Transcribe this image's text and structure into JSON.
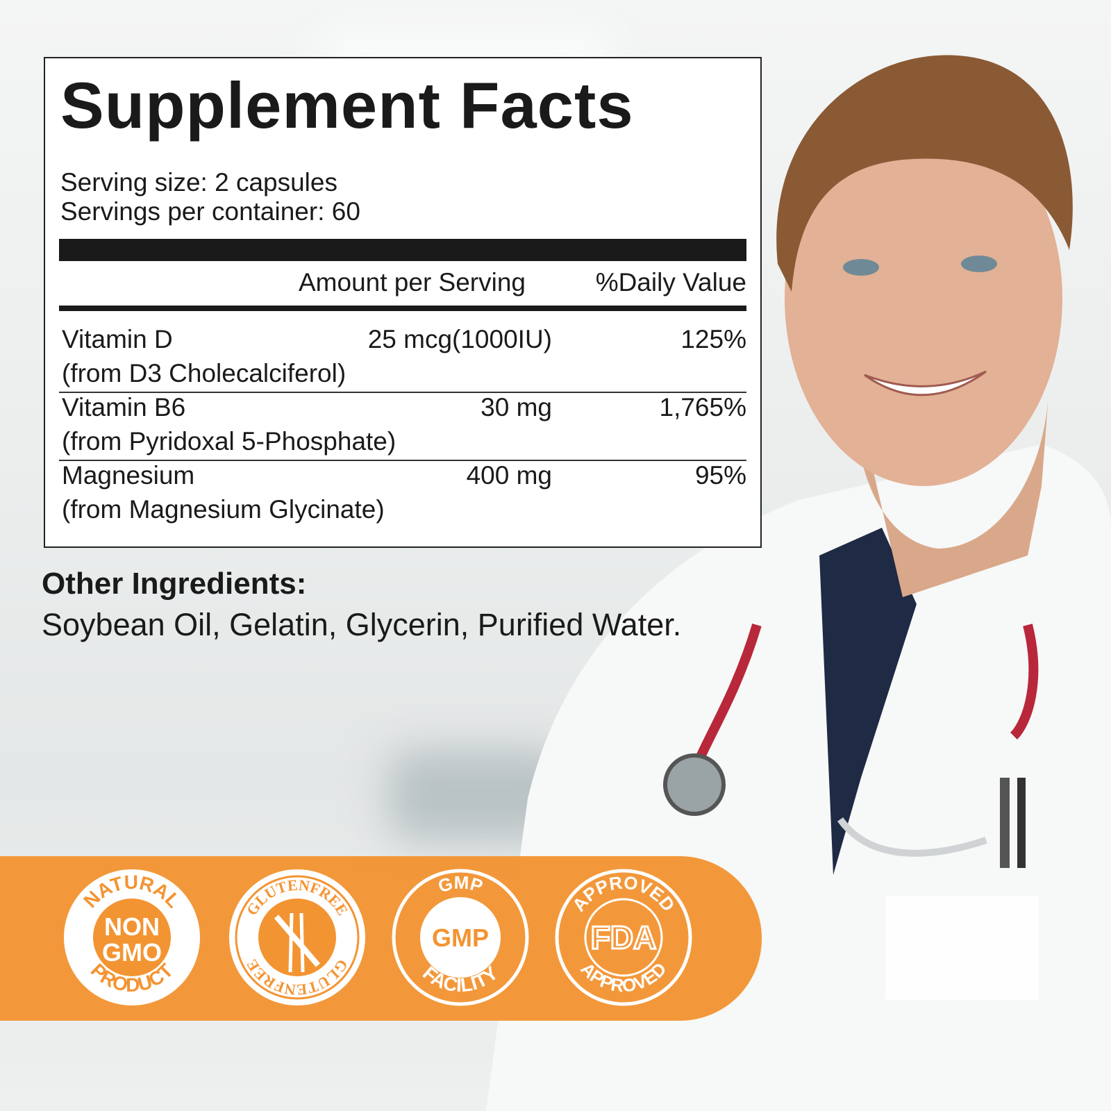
{
  "supplement_facts": {
    "title": "Supplement Facts",
    "serving_size": "Serving size: 2 capsules",
    "servings_per_container": "Servings per container: 60",
    "header_amount": "Amount per Serving",
    "header_daily_value": "%Daily Value",
    "rows": [
      {
        "name": "Vitamin D",
        "source": "(from D3 Cholecalciferol)",
        "amount": "25 mcg(1000IU)",
        "daily_value": "125%"
      },
      {
        "name": "Vitamin B6",
        "source": "(from Pyridoxal 5-Phosphate)",
        "amount": "30 mg",
        "daily_value": "1,765%"
      },
      {
        "name": "Magnesium",
        "source": "(from Magnesium Glycinate)",
        "amount": "400 mg",
        "daily_value": "95%"
      }
    ]
  },
  "other_ingredients": {
    "heading": "Other Ingredients:",
    "text": "Soybean Oil, Gelatin, Glycerin, Purified Water."
  },
  "badges": [
    {
      "top": "NATURAL",
      "center": "NON",
      "center2": "GMO",
      "bottom": "PRODUCT"
    },
    {
      "top": "GLUTENFREE",
      "bottom": "GLUTENFREE",
      "icon": "wheat-crossed-icon"
    },
    {
      "top": "GMP",
      "center": "GMP",
      "bottom": "FACILITY"
    },
    {
      "top": "APPROVED",
      "center": "FDA",
      "bottom": "APPROVED"
    }
  ],
  "colors": {
    "accent": "#f39432",
    "text": "#1a1a1a"
  }
}
